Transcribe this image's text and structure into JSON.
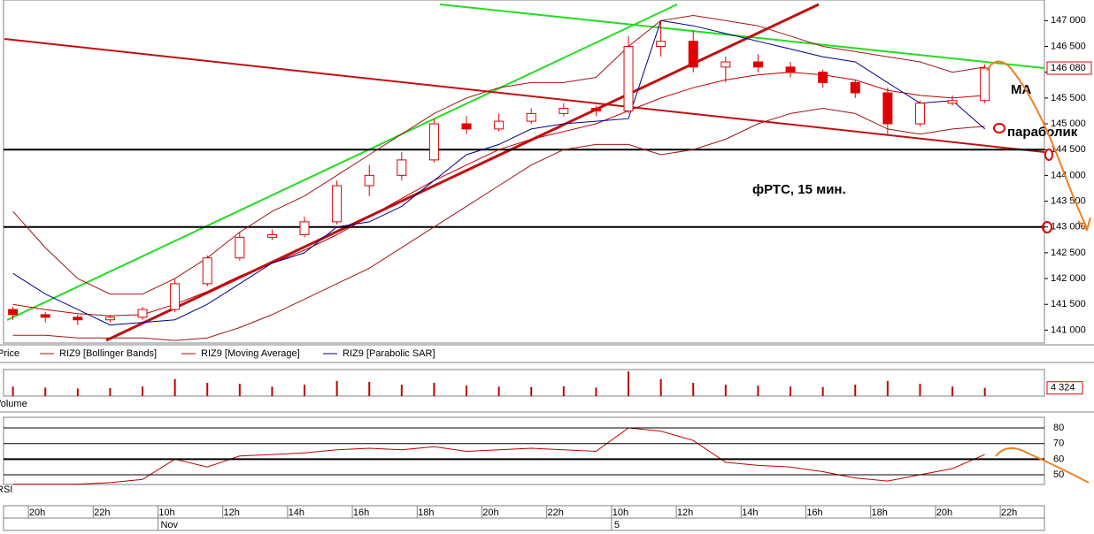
{
  "chart_data": {
    "type": "candlestick",
    "annotations": [
      "MA",
      "параболик",
      "фРТС,  15  мин."
    ],
    "xlim": [
      -0.29,
      31.84
    ],
    "xticks": [
      {
        "value": 0.75,
        "label": "20h"
      },
      {
        "value": 2.75,
        "label": "22h"
      },
      {
        "value": 4.75,
        "label": "10h"
      },
      {
        "value": 6.75,
        "label": "12h"
      },
      {
        "value": 8.75,
        "label": "14h"
      },
      {
        "value": 10.75,
        "label": "16h"
      },
      {
        "value": 12.75,
        "label": "18h"
      },
      {
        "value": 14.75,
        "label": "20h"
      },
      {
        "value": 16.75,
        "label": "22h"
      },
      {
        "value": 18.75,
        "label": "10h"
      },
      {
        "value": 20.75,
        "label": "12h"
      },
      {
        "value": 22.75,
        "label": "14h"
      },
      {
        "value": 24.75,
        "label": "16h"
      },
      {
        "value": 26.75,
        "label": "18h"
      },
      {
        "value": 28.75,
        "label": "20h"
      },
      {
        "value": 30.75,
        "label": "22h"
      }
    ],
    "date_labels": [
      {
        "value": 4.75,
        "label": "Nov"
      },
      {
        "value": 18.75,
        "label": "5"
      }
    ],
    "ylim": [
      140750,
      147400
    ],
    "yticks": [
      {
        "value": 141000,
        "label": "141 000"
      },
      {
        "value": 141500,
        "label": "141 500"
      },
      {
        "value": 142000,
        "label": "142 000"
      },
      {
        "value": 142500,
        "label": "142 500"
      },
      {
        "value": 143000,
        "label": "143 000"
      },
      {
        "value": 143500,
        "label": "143 500"
      },
      {
        "value": 144000,
        "label": "144 000"
      },
      {
        "value": 144500,
        "label": "144 500"
      },
      {
        "value": 145000,
        "label": "145 000"
      },
      {
        "value": 145500,
        "label": "145 500"
      },
      {
        "value": 146000,
        "label": "146 000"
      },
      {
        "value": 146500,
        "label": "146 500"
      },
      {
        "value": 147000,
        "label": "147 000"
      }
    ],
    "levels": [
      144500,
      143000
    ],
    "current_price": {
      "value": 146080,
      "label": "146 080"
    },
    "series": [
      {
        "name": "Price",
        "color": "#e00000",
        "open": [
          141400,
          141300,
          141250,
          141200,
          141250,
          141400,
          141900,
          142400,
          142800,
          142850,
          143100,
          143800,
          144000,
          144300,
          145000,
          144900,
          145050,
          145200,
          145300,
          145250,
          146500,
          146600,
          146100,
          146200,
          146100,
          146000,
          145800,
          145600,
          145000,
          145400,
          145450
        ],
        "high": [
          141450,
          141350,
          141300,
          141300,
          141450,
          142000,
          142450,
          142900,
          142950,
          143200,
          143900,
          144200,
          144450,
          145100,
          145150,
          145200,
          145300,
          145400,
          145350,
          146700,
          147000,
          146800,
          146300,
          146350,
          146200,
          146050,
          145850,
          145700,
          145450,
          145550,
          146150
        ],
        "low": [
          141200,
          141150,
          141100,
          141150,
          141200,
          141350,
          141850,
          142350,
          142750,
          142800,
          143050,
          143600,
          143900,
          144250,
          144800,
          144850,
          145000,
          145150,
          145150,
          145200,
          146300,
          146000,
          145800,
          146000,
          145900,
          145700,
          145500,
          144800,
          144950,
          145350,
          145400
        ],
        "close": [
          141300,
          141250,
          141200,
          141250,
          141400,
          141900,
          142400,
          142800,
          142850,
          143100,
          143800,
          144000,
          144300,
          145000,
          144900,
          145050,
          145200,
          145300,
          145250,
          146500,
          146600,
          146100,
          146200,
          146100,
          146000,
          145800,
          145600,
          145000,
          145400,
          145450,
          146080
        ]
      },
      {
        "name": "RIZ9 [Bollinger Bands]",
        "color": "#a31515",
        "upper": [
          143300,
          142600,
          142000,
          141700,
          141700,
          142000,
          142400,
          142900,
          143300,
          143600,
          144000,
          144400,
          144800,
          145200,
          145500,
          145700,
          145800,
          145800,
          145900,
          146500,
          147000,
          147100,
          147000,
          146900,
          146700,
          146500,
          146400,
          146300,
          146200,
          146000,
          146100
        ],
        "lower": [
          140900,
          140900,
          140850,
          140850,
          140850,
          140800,
          140850,
          141050,
          141300,
          141600,
          141900,
          142200,
          142600,
          143000,
          143400,
          143800,
          144200,
          144500,
          144600,
          144600,
          144400,
          144500,
          144700,
          145000,
          145200,
          145300,
          145200,
          144900,
          144800,
          144900,
          144950
        ]
      },
      {
        "name": "RIZ9 [Moving Average]",
        "color": "#c00000",
        "values": [
          141500,
          141400,
          141320,
          141280,
          141300,
          141500,
          141750,
          142050,
          142300,
          142550,
          142850,
          143200,
          143550,
          143900,
          144200,
          144500,
          144700,
          144850,
          145000,
          145250,
          145500,
          145700,
          145850,
          145950,
          146000,
          145950,
          145850,
          145650,
          145550,
          145500,
          145550
        ]
      },
      {
        "name": "RIZ9 [Parabolic SAR]",
        "color": "#00008b",
        "values": [
          142100,
          141700,
          141400,
          141100,
          141150,
          141200,
          141500,
          141900,
          142300,
          142500,
          143000,
          143100,
          143400,
          143900,
          144400,
          144600,
          144900,
          145000,
          145050,
          145100,
          147000,
          146900,
          146750,
          146600,
          146450,
          146300,
          146200,
          145800,
          145400,
          145450,
          144900
        ]
      }
    ],
    "volume": {
      "name": "Volume",
      "color": "#c00000",
      "ylim": [
        0,
        14000
      ],
      "values": [
        5000,
        4500,
        4000,
        4200,
        5000,
        9000,
        7000,
        6500,
        5000,
        6000,
        8000,
        7500,
        6000,
        7000,
        5500,
        5000,
        4800,
        5200,
        4500,
        13000,
        9000,
        7000,
        6000,
        5500,
        5000,
        4800,
        6000,
        8000,
        6500,
        5000,
        4324
      ],
      "current": {
        "value": 4324,
        "label": "4 324"
      }
    },
    "rsi": {
      "name": "RSI",
      "color": "#c00000",
      "ylim": [
        43.8,
        86.8
      ],
      "yticks": [
        50,
        60,
        70,
        80
      ],
      "values": [
        44,
        44,
        44,
        45,
        47,
        60,
        55,
        62,
        63,
        64,
        66,
        67,
        66,
        68,
        65,
        66,
        67,
        66,
        65,
        80,
        78,
        72,
        58,
        56,
        55,
        52,
        48,
        46,
        50,
        54,
        63
      ]
    }
  }
}
